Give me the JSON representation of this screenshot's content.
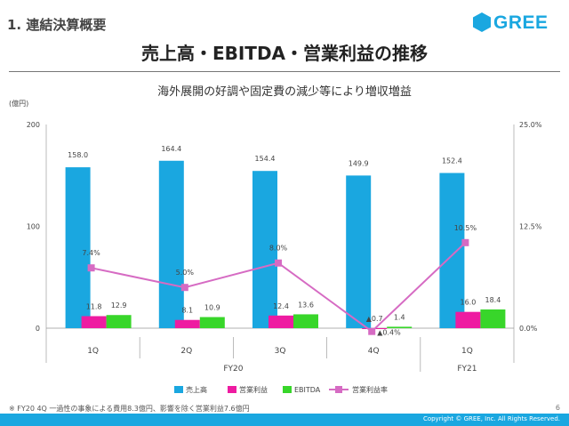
{
  "header": {
    "section_title": "1. 連結決算概要",
    "logo_text": "GREE",
    "main_title": "売上高・EBITDA・営業利益の推移",
    "subtitle": "海外展開の好調や固定費の減少等により増収増益"
  },
  "footer": {
    "note": "※ FY20 4Q 一過性の事象による費用8.3億円、影響を除く営業利益7.6億円",
    "page": "6",
    "copyright": "Copyright © GREE, Inc. All Rights Reserved."
  },
  "colors": {
    "brand": "#1aa7e0",
    "revenue": "#1aa7e0",
    "op_income": "#ee1ba1",
    "ebitda": "#38d62a",
    "margin": "#d66bc3"
  },
  "chart_data": {
    "type": "bar",
    "unit_label": "(億円)",
    "categories": [
      "1Q",
      "2Q",
      "3Q",
      "4Q",
      "1Q"
    ],
    "groups": [
      {
        "label": "FY20",
        "span": [
          0,
          3
        ]
      },
      {
        "label": "FY21",
        "span": [
          4,
          4
        ]
      }
    ],
    "ylim": [
      0,
      200
    ],
    "yticks": [
      "200",
      "100",
      "0"
    ],
    "y2lim": [
      0,
      25
    ],
    "y2ticks": [
      "25.0%",
      "12.5%",
      "0.0%"
    ],
    "series": [
      {
        "name": "売上高",
        "kind": "bar",
        "values": [
          158.0,
          164.4,
          154.4,
          149.9,
          152.4
        ],
        "labels": [
          "158.0",
          "164.4",
          "154.4",
          "149.9",
          "152.4"
        ]
      },
      {
        "name": "営業利益",
        "kind": "bar",
        "values": [
          11.8,
          8.1,
          12.4,
          -0.7,
          16.0
        ],
        "labels": [
          "11.8",
          "8.1",
          "12.4",
          "▲0.7",
          "16.0"
        ]
      },
      {
        "name": "EBITDA",
        "kind": "bar",
        "values": [
          12.9,
          10.9,
          13.6,
          1.4,
          18.4
        ],
        "labels": [
          "12.9",
          "10.9",
          "13.6",
          "1.4",
          "18.4"
        ]
      },
      {
        "name": "営業利益率",
        "kind": "line",
        "axis": "right",
        "values": [
          7.4,
          5.0,
          8.0,
          -0.4,
          10.5
        ],
        "labels": [
          "7.4%",
          "5.0%",
          "8.0%",
          "▲0.4%",
          "10.5%"
        ]
      }
    ]
  }
}
